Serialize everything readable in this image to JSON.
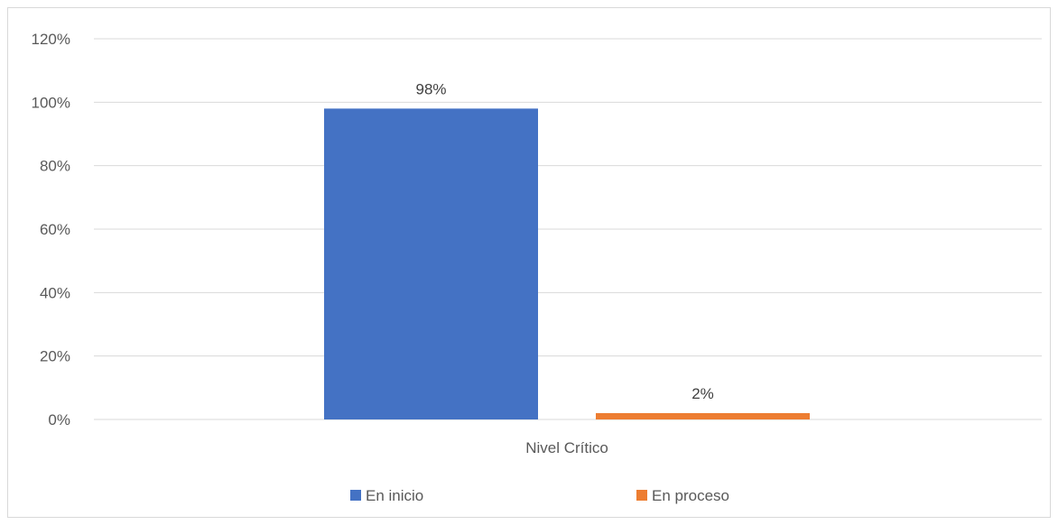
{
  "chart_data": {
    "type": "bar",
    "categories": [
      "Nivel Crítico"
    ],
    "series": [
      {
        "name": "En inicio",
        "values": [
          98
        ],
        "color": "#4472c4"
      },
      {
        "name": "En proceso",
        "values": [
          2
        ],
        "color": "#ed7d31"
      }
    ],
    "ylim": [
      0,
      120
    ],
    "yticks": [
      0,
      20,
      40,
      60,
      80,
      100,
      120
    ],
    "ytick_labels": [
      "0%",
      "20%",
      "40%",
      "60%",
      "80%",
      "100%",
      "120%"
    ],
    "data_labels": [
      "98%",
      "2%"
    ],
    "grid": true,
    "legend": "bottom",
    "gridline_color": "#d9d9d9"
  }
}
